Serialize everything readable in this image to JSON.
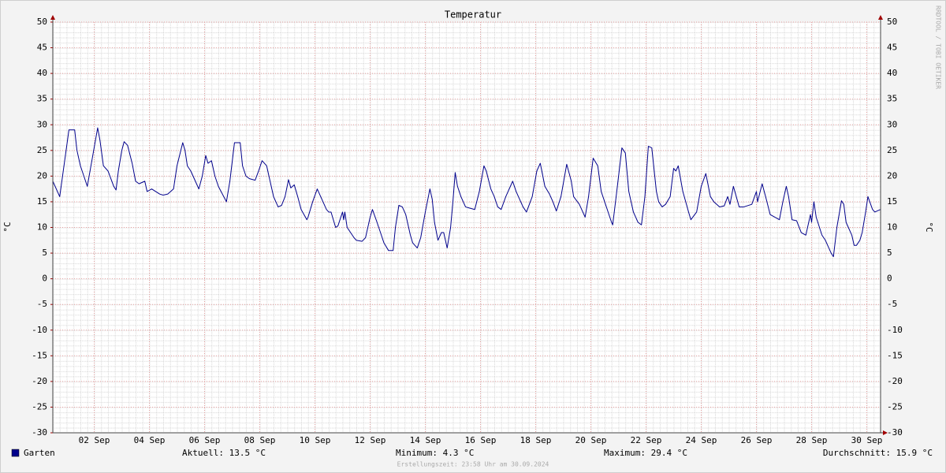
{
  "chart_data": {
    "type": "line",
    "title": "Temperatur",
    "y_label": "°C",
    "credit": "RRDTOOL / TOBI OETIKER",
    "x": [
      0,
      6,
      14,
      19,
      21,
      24,
      27,
      30,
      39,
      41,
      44,
      48,
      53,
      55,
      57,
      60,
      62,
      65,
      69,
      72,
      75,
      80,
      82,
      86,
      93,
      96,
      100,
      105,
      108,
      113,
      115,
      117,
      120,
      124,
      127,
      130,
      133,
      135,
      138,
      141,
      144,
      151,
      154,
      158,
      163,
      165,
      168,
      171,
      176,
      179,
      182,
      186,
      190,
      192,
      196,
      199,
      202,
      205,
      207,
      210,
      213,
      216,
      221,
      222,
      226,
      230,
      232,
      235,
      238,
      240,
      242,
      246,
      248,
      252,
      253,
      254,
      256,
      259,
      262,
      264,
      269,
      272,
      276,
      278,
      282,
      285,
      288,
      292,
      296,
      298,
      301,
      304,
      307,
      311,
      313,
      317,
      320,
      324,
      328,
      330,
      332,
      335,
      338,
      340,
      343,
      346,
      348,
      350,
      352,
      355,
      359,
      362,
      367,
      371,
      375,
      377,
      381,
      384,
      387,
      390,
      394,
      400,
      403,
      406,
      409,
      412,
      417,
      421,
      424,
      428,
      432,
      435,
      438,
      442,
      447,
      451,
      453,
      458,
      463,
      466,
      470,
      474,
      477,
      480,
      486,
      487,
      490,
      495,
      498,
      501,
      505,
      509,
      512,
      515,
      518,
      521,
      525,
      527,
      530,
      533,
      537,
      540,
      542,
      544,
      548,
      553,
      555,
      560,
      564,
      568,
      572,
      575,
      580,
      584,
      587,
      589,
      592,
      597,
      601,
      608,
      612,
      613,
      617,
      620,
      624,
      632,
      635,
      638,
      640,
      643,
      647,
      651,
      655,
      659,
      660,
      662,
      664,
      669,
      672,
      677,
      679,
      682,
      686,
      688,
      690,
      695,
      697,
      699,
      702,
      704,
      707,
      709,
      713,
      715,
      720
    ],
    "xlim": [
      0,
      720
    ],
    "xticks": [
      {
        "value": 36,
        "label": "02 Sep"
      },
      {
        "value": 84,
        "label": "04 Sep"
      },
      {
        "value": 132,
        "label": "06 Sep"
      },
      {
        "value": 180,
        "label": "08 Sep"
      },
      {
        "value": 228,
        "label": "10 Sep"
      },
      {
        "value": 276,
        "label": "12 Sep"
      },
      {
        "value": 324,
        "label": "14 Sep"
      },
      {
        "value": 372,
        "label": "16 Sep"
      },
      {
        "value": 420,
        "label": "18 Sep"
      },
      {
        "value": 468,
        "label": "20 Sep"
      },
      {
        "value": 516,
        "label": "22 Sep"
      },
      {
        "value": 564,
        "label": "24 Sep"
      },
      {
        "value": 612,
        "label": "26 Sep"
      },
      {
        "value": 660,
        "label": "28 Sep"
      },
      {
        "value": 708,
        "label": "30 Sep"
      }
    ],
    "ylim": [
      -30,
      50
    ],
    "yticks": [
      -30,
      -25,
      -20,
      -15,
      -10,
      -5,
      0,
      5,
      10,
      15,
      20,
      25,
      30,
      35,
      40,
      45,
      50
    ],
    "grid": true,
    "series": [
      {
        "name": "Garten",
        "color": "#00008b",
        "values": [
          19,
          16,
          29,
          29,
          25,
          22,
          20,
          18,
          29.4,
          27,
          22,
          21,
          18,
          17.3,
          21,
          25,
          26.7,
          26,
          22.5,
          19,
          18.5,
          19,
          17,
          17.5,
          16.5,
          16.3,
          16.5,
          17.5,
          22,
          26.5,
          25,
          22,
          21,
          19,
          17.5,
          20,
          24,
          22.5,
          23,
          20,
          18,
          15,
          19,
          26.5,
          26.5,
          22,
          20,
          19.5,
          19.2,
          21,
          23,
          22,
          18,
          16,
          14,
          14.3,
          16,
          19.3,
          17.7,
          18.3,
          16,
          13.5,
          11.5,
          12,
          15,
          17.5,
          16.5,
          15,
          13.5,
          13,
          13,
          10,
          10.3,
          13,
          11.5,
          13,
          10,
          9,
          8,
          7.5,
          7.3,
          8,
          12,
          13.5,
          11,
          9,
          7,
          5.5,
          5.5,
          10,
          14.3,
          14,
          12.5,
          8.5,
          7,
          6,
          8,
          13,
          17.5,
          15.5,
          11,
          7.5,
          9,
          9,
          6,
          10,
          15,
          20.7,
          18,
          16,
          14,
          13.8,
          13.5,
          17,
          22,
          21,
          17.5,
          16,
          14,
          13.5,
          16,
          19,
          17,
          15.5,
          14,
          13,
          16,
          21,
          22.5,
          18,
          16.5,
          15,
          13.2,
          16,
          22.3,
          19,
          16,
          14.5,
          12,
          16,
          23.5,
          22,
          17,
          15,
          11,
          10.5,
          16,
          25.5,
          24.5,
          17,
          13,
          11,
          10.5,
          16,
          25.8,
          25.5,
          17,
          15,
          14,
          14.5,
          16,
          21.5,
          21,
          22,
          17,
          13,
          11.5,
          13,
          18,
          20.5,
          16,
          15,
          14,
          14.2,
          16,
          14.5,
          18,
          14,
          14,
          14.5,
          17,
          15,
          18.5,
          16,
          12.5,
          11.5,
          15,
          18,
          16,
          11.5,
          11.3,
          9,
          8.5,
          12.5,
          11,
          15,
          12,
          8.5,
          7.5,
          5,
          4.3,
          10,
          15.2,
          14.5,
          11,
          8.5,
          6.5,
          6.5,
          7.5,
          9,
          13,
          16,
          13.5,
          13,
          13.5
        ]
      }
    ],
    "stats": [
      "Aktuell: 13.5 °C",
      "Minimum: 4.3 °C",
      "Maximum: 29.4 °C",
      "Durchschnitt: 15.9 °C"
    ],
    "footer": "Erstellungszeit: 23:58 Uhr am 30.09.2024"
  }
}
